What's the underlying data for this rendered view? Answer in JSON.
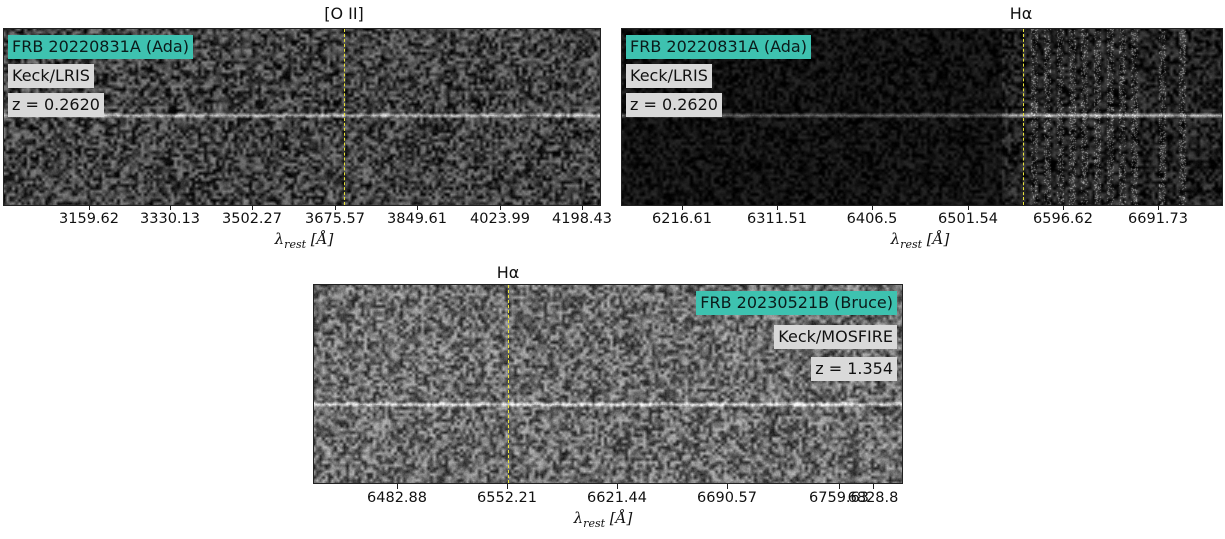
{
  "panels": [
    {
      "line_label": "[O II]",
      "frb": "FRB 20220831A (Ada)",
      "instrument": "Keck/LRIS",
      "redshift": "z = 0.2620",
      "ticks": [
        "3159.62",
        "3330.13",
        "3502.27",
        "3675.57",
        "3849.61",
        "4023.99",
        "4198.43"
      ],
      "xlabel": "λrest [Å]"
    },
    {
      "line_label": "Hα",
      "frb": "FRB 20220831A (Ada)",
      "instrument": "Keck/LRIS",
      "redshift": "z = 0.2620",
      "ticks": [
        "6216.61",
        "6311.51",
        "6406.5",
        "6501.54",
        "6596.62",
        "6691.73"
      ],
      "xlabel": "λrest [Å]"
    },
    {
      "line_label": "Hα",
      "frb": "FRB 20230521B (Bruce)",
      "instrument": "Keck/MOSFIRE",
      "redshift": "z = 1.354",
      "ticks": [
        "6482.88",
        "6552.21",
        "6621.44",
        "6690.57",
        "6759.63",
        "6828.8"
      ],
      "xlabel": "λrest [Å]"
    }
  ],
  "colors": {
    "tag_teal": "#3ec2b0",
    "tag_gray": "#d9d9d9",
    "marker": "#e8e23a"
  }
}
